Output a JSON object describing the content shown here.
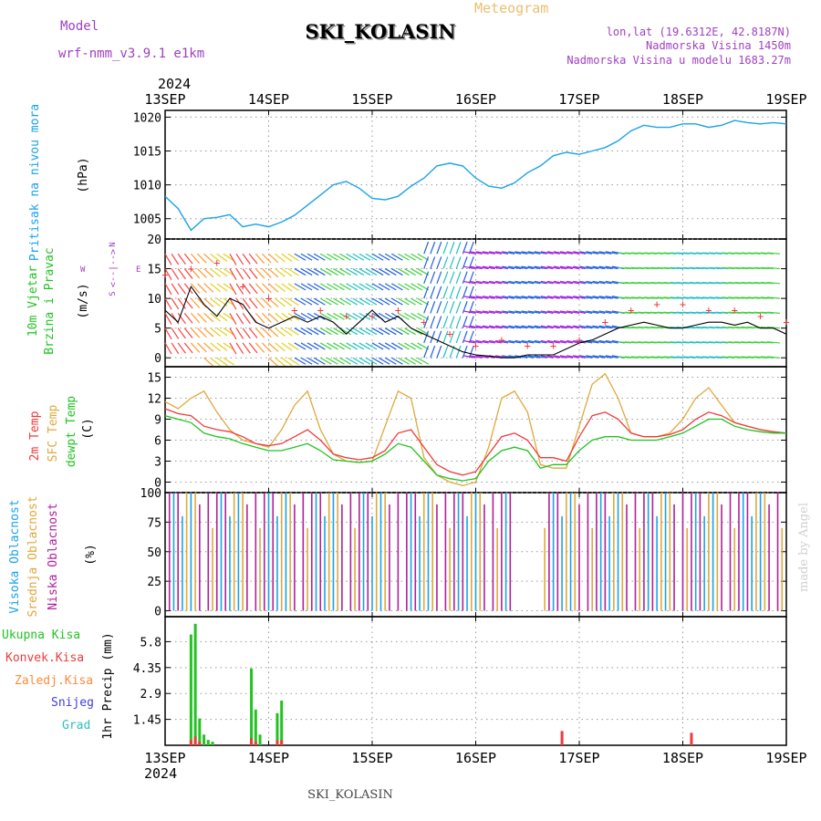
{
  "header": {
    "model_label": "Model",
    "model_name": "wrf-nmm_v3.9.1 e1km",
    "meteogram_label": "Meteogram",
    "station_title": "SKI_KOLASIN",
    "lonlat": "lon,lat (19.6312E, 42.8187N)",
    "elevation": "Nadmorska Visina 1450m",
    "model_elevation": "Nadmorska Visina u modelu 1683.27m"
  },
  "footer": {
    "station": "SKI_KOLASIN",
    "credit": "made by Angel"
  },
  "x_axis": {
    "year": "2024",
    "ticks": [
      "13SEP",
      "14SEP",
      "15SEP",
      "16SEP",
      "17SEP",
      "18SEP",
      "19SEP"
    ],
    "unit": "hours since 13SEP 00UTC"
  },
  "colors": {
    "pressure": "#1aa3e8",
    "temp2m": "#ee3b3b",
    "sfc_temp": "#e0a83c",
    "dewpoint": "#22c322",
    "high_cloud": "#1aa3e8",
    "mid_cloud": "#e0a83c",
    "low_cloud": "#b0209a",
    "total_precip": "#22c322",
    "conv_precip": "#ee3b3b",
    "frozen_precip": "#ff8a3c",
    "snow": "#4040e0",
    "hail": "#30c0c0",
    "wind_speed": "#000000",
    "gust": "#ee3b3b",
    "axis_label_purple": "#a040c0"
  },
  "panels": {
    "pressure": {
      "label1": "Pritisak na nivou mora",
      "unit": "(hPa)"
    },
    "wind": {
      "label1": "10m Vjetar",
      "label2": "Brzina i Pravac",
      "unit": "(m/s)",
      "compass": {
        "n": "N",
        "s": "S",
        "e": "E",
        "w": "W",
        "arrows": "<--|-->"
      }
    },
    "temp": {
      "label1": "2m Temp",
      "label2": "SFC Temp",
      "label3": "dewpt Temp",
      "unit": "(C)"
    },
    "cloud": {
      "label1": "Visoka Oblacnost",
      "label2": "Srednja Oblacnost",
      "label3": "Niska Oblacnost",
      "unit": "(%)"
    },
    "precip": {
      "label": "1hr Precip (mm)",
      "legend": [
        "Ukupna Kisa",
        "Konvek.Kisa",
        "Zaledj.Kisa",
        "Snijeg",
        "Grad"
      ]
    }
  },
  "chart_data": [
    {
      "type": "line",
      "title": "Pritisak na nivou mora",
      "ylabel": "(hPa)",
      "ylim": [
        1002,
        1021
      ],
      "yticks": [
        1005,
        1010,
        1015,
        1020
      ],
      "grid": true,
      "series": [
        {
          "name": "Pritisak na nivou mora",
          "x": [
            0,
            3,
            6,
            9,
            12,
            15,
            18,
            21,
            24,
            27,
            30,
            33,
            36,
            39,
            42,
            45,
            48,
            51,
            54,
            57,
            60,
            63,
            66,
            69,
            72,
            75,
            78,
            81,
            84,
            87,
            90,
            93,
            96,
            99,
            102,
            105,
            108,
            111,
            114,
            117,
            120,
            123,
            126,
            129,
            132,
            135,
            138,
            141,
            144
          ],
          "values": [
            1008.3,
            1006.5,
            1003.3,
            1005.0,
            1005.2,
            1005.6,
            1003.8,
            1004.2,
            1003.8,
            1004.5,
            1005.5,
            1007.0,
            1008.5,
            1010.0,
            1010.5,
            1009.5,
            1008.0,
            1007.8,
            1008.3,
            1009.8,
            1011.0,
            1012.8,
            1013.2,
            1012.8,
            1011.0,
            1009.8,
            1009.5,
            1010.3,
            1011.8,
            1012.8,
            1014.3,
            1014.8,
            1014.5,
            1015.0,
            1015.5,
            1016.5,
            1018.0,
            1018.8,
            1018.5,
            1018.5,
            1019.0,
            1019.0,
            1018.5,
            1018.8,
            1019.5,
            1019.2,
            1019.0,
            1019.2,
            1019.0
          ]
        }
      ]
    },
    {
      "type": "line",
      "title": "10m Vjetar Brzina i Pravac",
      "ylabel": "(m/s)",
      "ylim": [
        -1.5,
        20
      ],
      "yticks": [
        0,
        5,
        10,
        15,
        20
      ],
      "grid": true,
      "series": [
        {
          "name": "Brzina",
          "x": [
            0,
            3,
            6,
            9,
            12,
            15,
            18,
            21,
            24,
            27,
            30,
            33,
            36,
            39,
            42,
            45,
            48,
            51,
            54,
            57,
            60,
            63,
            66,
            69,
            72,
            75,
            78,
            81,
            84,
            87,
            90,
            93,
            96,
            99,
            102,
            105,
            108,
            111,
            114,
            117,
            120,
            123,
            126,
            129,
            132,
            135,
            138,
            141,
            144
          ],
          "values": [
            8,
            6,
            12,
            9,
            7,
            10,
            9,
            6,
            5,
            6,
            7,
            6,
            7,
            6,
            4,
            6,
            8,
            6,
            7,
            5,
            4,
            3,
            2,
            1,
            0.5,
            0.3,
            0,
            0,
            0.5,
            0.5,
            0.5,
            1.5,
            2.5,
            3,
            4,
            5,
            5.5,
            6,
            5.5,
            5,
            5,
            5.5,
            6,
            6,
            5.5,
            6,
            5,
            5,
            4
          ]
        },
        {
          "name": "Udari",
          "x": [
            0,
            6,
            12,
            18,
            24,
            30,
            36,
            42,
            48,
            54,
            60,
            66,
            72,
            78,
            84,
            90,
            96,
            102,
            108,
            114,
            120,
            126,
            132,
            138,
            144
          ],
          "values": [
            14,
            15,
            16,
            12,
            10,
            8,
            8,
            7,
            7,
            8,
            6,
            4,
            2,
            3,
            2,
            2,
            3,
            6,
            8,
            9,
            9,
            8,
            8,
            7,
            6
          ]
        }
      ]
    },
    {
      "type": "line",
      "title": "Temperature",
      "ylabel": "(C)",
      "ylim": [
        -1.5,
        16.5
      ],
      "yticks": [
        0,
        3,
        6,
        9,
        12,
        15
      ],
      "grid": true,
      "series": [
        {
          "name": "2m Temp",
          "x": [
            0,
            3,
            6,
            9,
            12,
            15,
            18,
            21,
            24,
            27,
            30,
            33,
            36,
            39,
            42,
            45,
            48,
            51,
            54,
            57,
            60,
            63,
            66,
            69,
            72,
            75,
            78,
            81,
            84,
            87,
            90,
            93,
            96,
            99,
            102,
            105,
            108,
            111,
            114,
            117,
            120,
            123,
            126,
            129,
            132,
            135,
            138,
            141,
            144
          ],
          "values": [
            10.5,
            9.8,
            9.5,
            8.0,
            7.5,
            7.2,
            6.5,
            5.5,
            5.2,
            5.5,
            6.5,
            7.5,
            6.0,
            4.0,
            3.5,
            3.2,
            3.5,
            4.5,
            7.0,
            7.5,
            5.0,
            2.5,
            1.5,
            1.0,
            1.5,
            4.0,
            6.5,
            7.0,
            6.0,
            3.5,
            3.5,
            3.0,
            6.5,
            9.5,
            10.0,
            9.0,
            7.0,
            6.5,
            6.5,
            6.8,
            7.5,
            9.0,
            10.0,
            9.5,
            8.5,
            8.0,
            7.5,
            7.2,
            7.0
          ]
        },
        {
          "name": "SFC Temp",
          "x": [
            0,
            3,
            6,
            9,
            12,
            15,
            18,
            21,
            24,
            27,
            30,
            33,
            36,
            39,
            42,
            45,
            48,
            51,
            54,
            57,
            60,
            63,
            66,
            69,
            72,
            75,
            78,
            81,
            84,
            87,
            90,
            93,
            96,
            99,
            102,
            105,
            108,
            111,
            114,
            117,
            120,
            123,
            126,
            129,
            132,
            135,
            138,
            141,
            144
          ],
          "values": [
            11.5,
            10.5,
            12.0,
            13.0,
            10.0,
            7.5,
            6.0,
            5.5,
            5.0,
            7.5,
            11.0,
            13.0,
            7.5,
            4.0,
            3.0,
            2.8,
            3.0,
            8.0,
            13.0,
            12.0,
            3.5,
            1.0,
            0.0,
            -0.5,
            0.0,
            5.0,
            12.0,
            13.0,
            10.0,
            2.5,
            2.0,
            2.0,
            8.0,
            14.0,
            15.5,
            12.0,
            7.0,
            6.5,
            6.5,
            7.0,
            9.0,
            12.0,
            13.5,
            11.0,
            8.5,
            8.0,
            7.5,
            7.2,
            7.0
          ]
        },
        {
          "name": "dewpt Temp",
          "x": [
            0,
            3,
            6,
            9,
            12,
            15,
            18,
            21,
            24,
            27,
            30,
            33,
            36,
            39,
            42,
            45,
            48,
            51,
            54,
            57,
            60,
            63,
            66,
            69,
            72,
            75,
            78,
            81,
            84,
            87,
            90,
            93,
            96,
            99,
            102,
            105,
            108,
            111,
            114,
            117,
            120,
            123,
            126,
            129,
            132,
            135,
            138,
            141,
            144
          ],
          "values": [
            9.5,
            9.0,
            8.5,
            7.0,
            6.5,
            6.2,
            5.5,
            5.0,
            4.5,
            4.5,
            5.0,
            5.5,
            4.5,
            3.2,
            3.0,
            2.8,
            3.0,
            4.0,
            5.5,
            5.0,
            3.0,
            1.0,
            0.5,
            0.2,
            0.5,
            3.0,
            4.5,
            5.0,
            4.5,
            2.0,
            2.5,
            2.5,
            4.5,
            6.0,
            6.5,
            6.5,
            6.0,
            6.0,
            6.0,
            6.5,
            7.0,
            8.0,
            9.0,
            9.0,
            8.0,
            7.5,
            7.2,
            7.0,
            7.0
          ]
        }
      ]
    },
    {
      "type": "bar",
      "title": "Oblacnost",
      "ylabel": "(%)",
      "ylim": [
        -5,
        100
      ],
      "yticks": [
        0,
        25,
        50,
        75,
        100
      ],
      "grid": true,
      "note": "hourly cloud fraction bars; mostly 0 or 100 with clear period late 15SEP to early 16SEP"
    },
    {
      "type": "bar",
      "title": "1hr Precip",
      "ylabel": "1hr Precip (mm)",
      "ylim": [
        0,
        7.2
      ],
      "yticks": [
        1.45,
        2.9,
        4.35,
        5.8
      ],
      "grid": true,
      "series": [
        {
          "name": "Ukupna Kisa",
          "x": [
            6,
            7,
            8,
            9,
            10,
            11,
            20,
            21,
            22,
            26,
            27
          ],
          "values": [
            6.2,
            6.8,
            1.5,
            0.6,
            0.3,
            0.2,
            4.3,
            2.0,
            0.6,
            1.8,
            2.5
          ]
        },
        {
          "name": "Konvek.Kisa",
          "x": [
            6,
            7,
            8,
            20,
            21,
            26,
            27,
            92,
            122
          ],
          "values": [
            0.3,
            0.5,
            0.2,
            0.4,
            0.2,
            0.3,
            0.3,
            0.8,
            0.7
          ]
        }
      ]
    }
  ]
}
